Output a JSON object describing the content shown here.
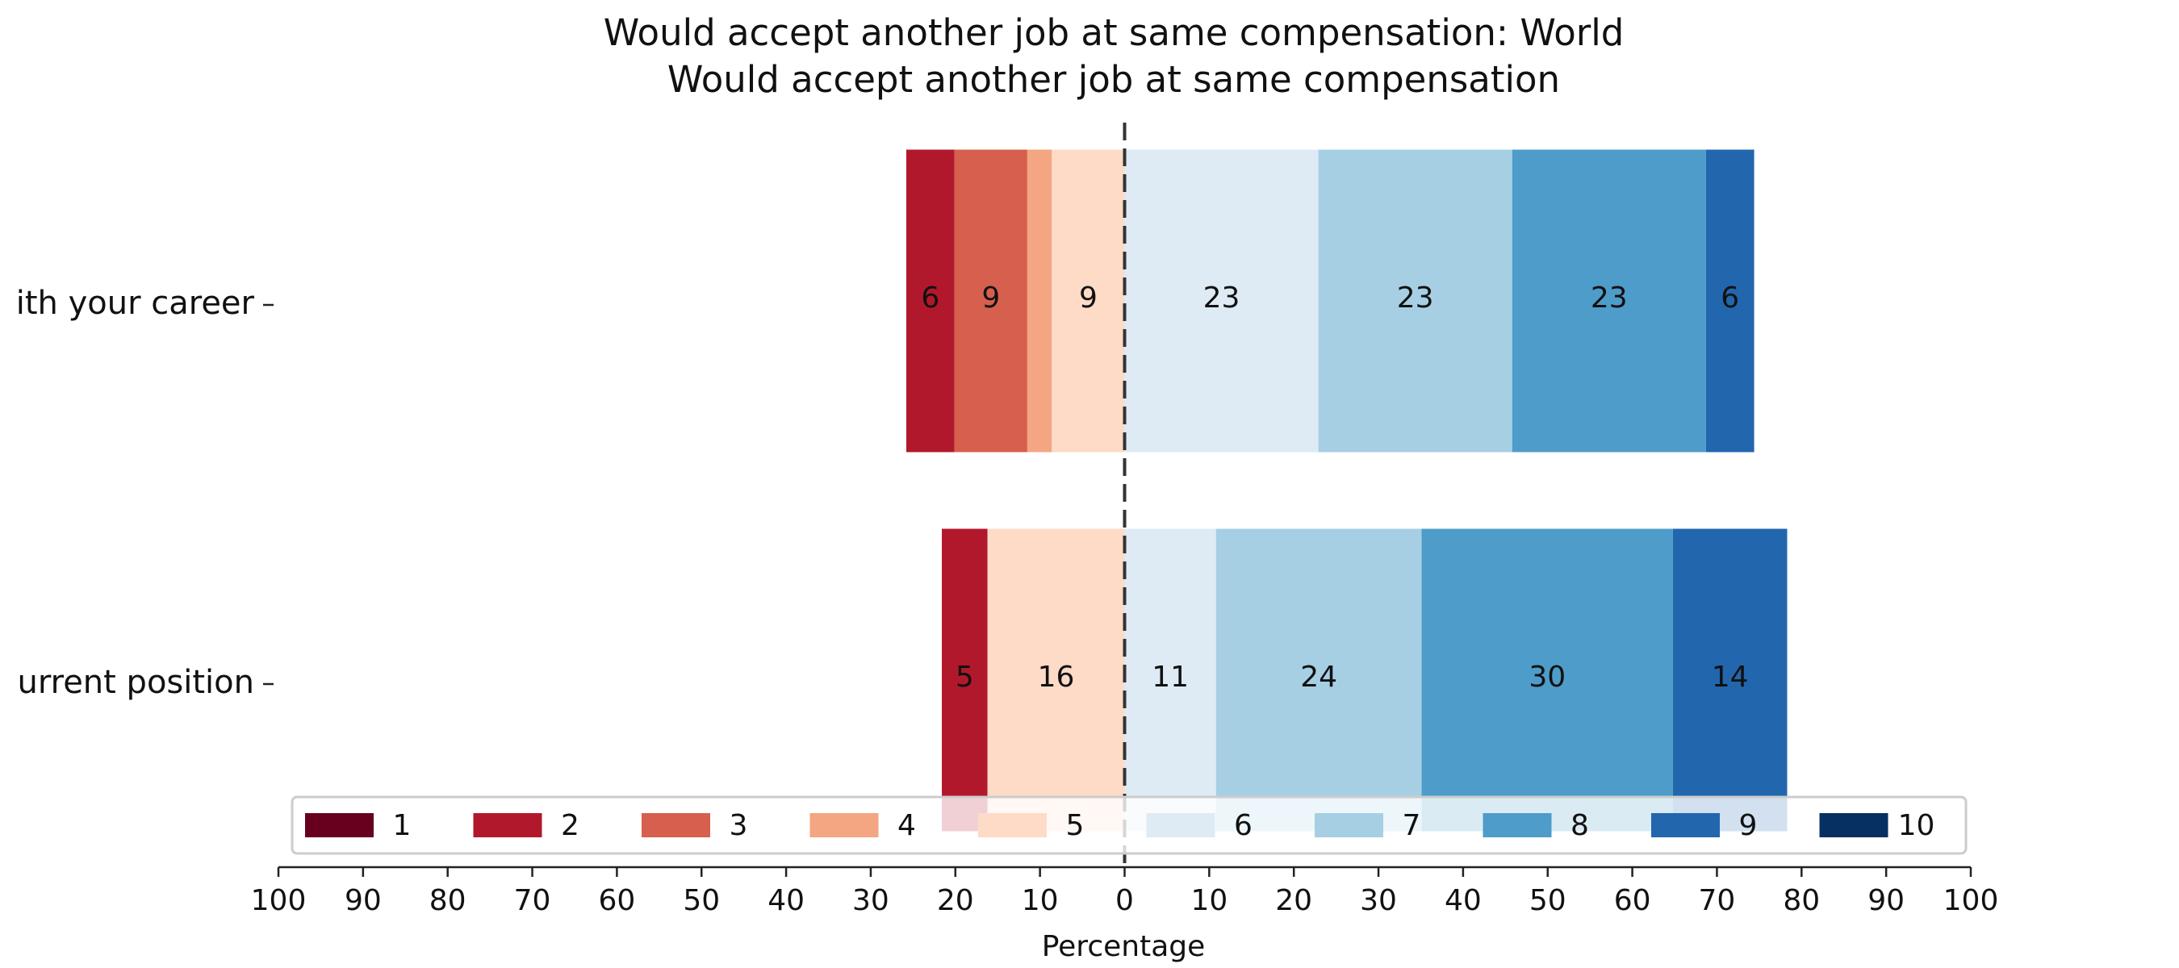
{
  "chart_data": {
    "type": "bar",
    "orientation": "horizontal-diverging",
    "title": "Would accept another job at same compensation: World",
    "subtitle": "Would accept another job at same compensation",
    "xlabel": "Percentage",
    "ylabel": "",
    "xlim": [
      -100,
      100
    ],
    "x_ticks": [
      "100",
      "90",
      "80",
      "70",
      "60",
      "50",
      "40",
      "30",
      "20",
      "10",
      "0",
      "10",
      "20",
      "30",
      "40",
      "50",
      "60",
      "70",
      "80",
      "90",
      "100"
    ],
    "categories": [
      "ith your career",
      "urrent position"
    ],
    "legend_position": "lower-center",
    "grid": false,
    "series": [
      {
        "name": "1",
        "color": "#67001f",
        "values": [
          0,
          0
        ]
      },
      {
        "name": "2",
        "color": "#b2182b",
        "values": [
          5.7,
          5.4
        ]
      },
      {
        "name": "3",
        "color": "#d6604d",
        "values": [
          8.6,
          0
        ]
      },
      {
        "name": "4",
        "color": "#f4a582",
        "values": [
          2.9,
          0
        ]
      },
      {
        "name": "5",
        "color": "#fddbc7",
        "values": [
          8.6,
          16.2
        ]
      },
      {
        "name": "6",
        "color": "#deebf5",
        "values": [
          22.9,
          10.8
        ]
      },
      {
        "name": "7",
        "color": "#a6cfe4",
        "values": [
          22.9,
          24.3
        ]
      },
      {
        "name": "8",
        "color": "#4e9cc9",
        "values": [
          22.9,
          29.7
        ]
      },
      {
        "name": "9",
        "color": "#2266ae",
        "values": [
          5.7,
          13.5
        ]
      },
      {
        "name": "10",
        "color": "#053061",
        "values": [
          0,
          0
        ]
      }
    ],
    "data_labels": [
      [
        "",
        "6",
        "9",
        "",
        "9",
        "23",
        "23",
        "23",
        "6",
        ""
      ],
      [
        "",
        "5",
        "",
        "",
        "16",
        "11",
        "24",
        "30",
        "14",
        ""
      ]
    ]
  }
}
